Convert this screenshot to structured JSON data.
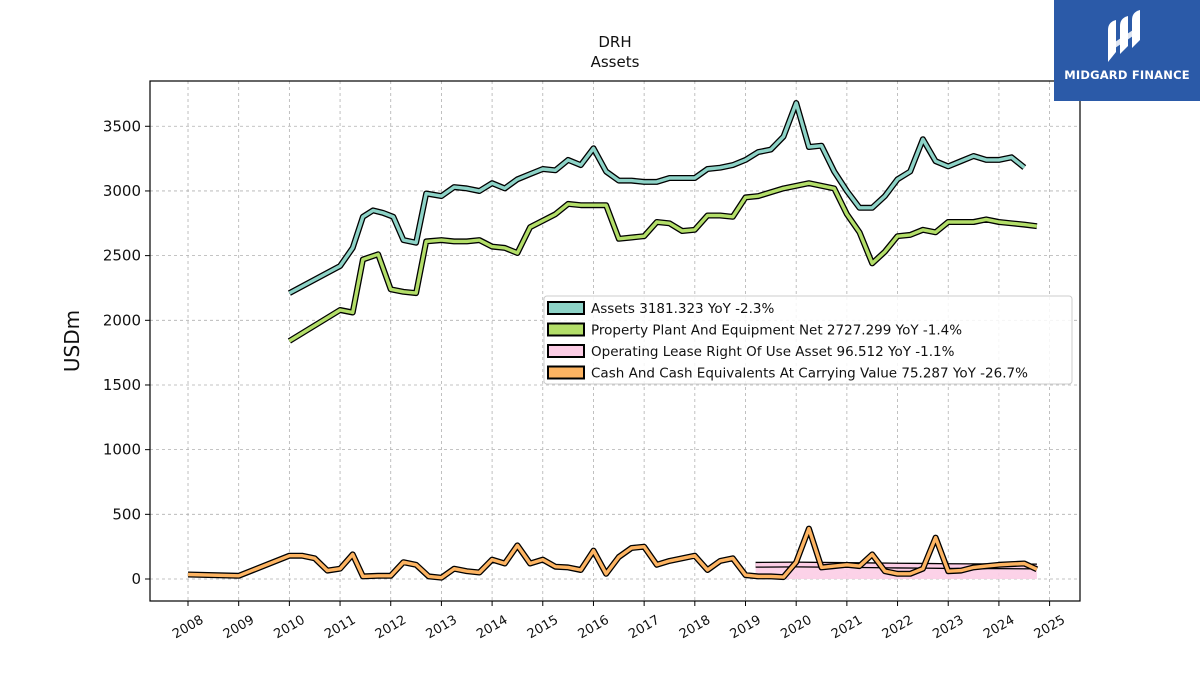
{
  "brand": {
    "name": "MIDGARD FINANCE",
    "icon": "midgard-logo-icon",
    "bg_color": "#2b5aa8"
  },
  "chart_data": {
    "type": "line",
    "title": "DRH",
    "subtitle": "Assets",
    "xlabel": "",
    "ylabel": "USDm",
    "xlim": [
      2007.25,
      2025.6
    ],
    "ylim": [
      -170,
      3850
    ],
    "x_ticks": [
      "2008",
      "2009",
      "2010",
      "2011",
      "2012",
      "2013",
      "2014",
      "2015",
      "2016",
      "2017",
      "2018",
      "2019",
      "2020",
      "2021",
      "2022",
      "2023",
      "2024",
      "2025"
    ],
    "y_ticks": [
      0,
      500,
      1000,
      1500,
      2000,
      2500,
      3000,
      3500
    ],
    "grid": true,
    "legend_position": "center-right",
    "series": [
      {
        "name": "Assets",
        "legend": "Assets  3181.323 YoY -2.3%",
        "color": "#8dd3c7",
        "points": [
          [
            2010.0,
            2210
          ],
          [
            2011.0,
            2420
          ],
          [
            2011.25,
            2560
          ],
          [
            2011.45,
            2800
          ],
          [
            2011.65,
            2850
          ],
          [
            2011.85,
            2830
          ],
          [
            2012.05,
            2800
          ],
          [
            2012.25,
            2620
          ],
          [
            2012.5,
            2600
          ],
          [
            2012.7,
            2980
          ],
          [
            2013.0,
            2960
          ],
          [
            2013.25,
            3030
          ],
          [
            2013.5,
            3020
          ],
          [
            2013.75,
            3000
          ],
          [
            2014.0,
            3060
          ],
          [
            2014.25,
            3020
          ],
          [
            2014.5,
            3090
          ],
          [
            2014.75,
            3130
          ],
          [
            2015.0,
            3170
          ],
          [
            2015.25,
            3160
          ],
          [
            2015.5,
            3240
          ],
          [
            2015.75,
            3200
          ],
          [
            2016.0,
            3330
          ],
          [
            2016.25,
            3150
          ],
          [
            2016.5,
            3080
          ],
          [
            2016.75,
            3080
          ],
          [
            2017.0,
            3070
          ],
          [
            2017.25,
            3070
          ],
          [
            2017.5,
            3100
          ],
          [
            2017.75,
            3100
          ],
          [
            2018.0,
            3100
          ],
          [
            2018.25,
            3170
          ],
          [
            2018.5,
            3180
          ],
          [
            2018.75,
            3200
          ],
          [
            2019.0,
            3240
          ],
          [
            2019.25,
            3300
          ],
          [
            2019.5,
            3320
          ],
          [
            2019.75,
            3420
          ],
          [
            2020.0,
            3680
          ],
          [
            2020.25,
            3340
          ],
          [
            2020.5,
            3350
          ],
          [
            2020.75,
            3150
          ],
          [
            2021.0,
            3000
          ],
          [
            2021.25,
            2870
          ],
          [
            2021.5,
            2870
          ],
          [
            2021.75,
            2960
          ],
          [
            2022.0,
            3090
          ],
          [
            2022.25,
            3150
          ],
          [
            2022.5,
            3400
          ],
          [
            2022.75,
            3230
          ],
          [
            2023.0,
            3190
          ],
          [
            2023.25,
            3230
          ],
          [
            2023.5,
            3270
          ],
          [
            2023.75,
            3240
          ],
          [
            2024.0,
            3240
          ],
          [
            2024.25,
            3260
          ],
          [
            2024.5,
            3181.323
          ]
        ]
      },
      {
        "name": "Property Plant And Equipment Net",
        "legend": "Property Plant And Equipment Net  2727.299 YoY -1.4%",
        "color": "#b3de69",
        "points": [
          [
            2010.0,
            1840
          ],
          [
            2011.0,
            2080
          ],
          [
            2011.25,
            2060
          ],
          [
            2011.45,
            2470
          ],
          [
            2011.75,
            2510
          ],
          [
            2012.0,
            2240
          ],
          [
            2012.25,
            2220
          ],
          [
            2012.5,
            2210
          ],
          [
            2012.7,
            2610
          ],
          [
            2013.0,
            2620
          ],
          [
            2013.25,
            2610
          ],
          [
            2013.5,
            2610
          ],
          [
            2013.75,
            2620
          ],
          [
            2014.0,
            2570
          ],
          [
            2014.25,
            2560
          ],
          [
            2014.5,
            2520
          ],
          [
            2014.75,
            2720
          ],
          [
            2015.0,
            2770
          ],
          [
            2015.25,
            2820
          ],
          [
            2015.5,
            2900
          ],
          [
            2015.75,
            2890
          ],
          [
            2016.0,
            2890
          ],
          [
            2016.25,
            2890
          ],
          [
            2016.5,
            2630
          ],
          [
            2016.75,
            2640
          ],
          [
            2017.0,
            2650
          ],
          [
            2017.25,
            2760
          ],
          [
            2017.5,
            2750
          ],
          [
            2017.75,
            2690
          ],
          [
            2018.0,
            2700
          ],
          [
            2018.25,
            2810
          ],
          [
            2018.5,
            2810
          ],
          [
            2018.75,
            2800
          ],
          [
            2019.0,
            2950
          ],
          [
            2019.25,
            2960
          ],
          [
            2019.5,
            2990
          ],
          [
            2019.75,
            3020
          ],
          [
            2020.0,
            3040
          ],
          [
            2020.25,
            3060
          ],
          [
            2020.5,
            3040
          ],
          [
            2020.75,
            3020
          ],
          [
            2021.0,
            2820
          ],
          [
            2021.25,
            2680
          ],
          [
            2021.5,
            2440
          ],
          [
            2021.75,
            2530
          ],
          [
            2022.0,
            2650
          ],
          [
            2022.25,
            2660
          ],
          [
            2022.5,
            2700
          ],
          [
            2022.75,
            2680
          ],
          [
            2023.0,
            2760
          ],
          [
            2023.25,
            2760
          ],
          [
            2023.5,
            2760
          ],
          [
            2023.75,
            2780
          ],
          [
            2024.0,
            2760
          ],
          [
            2024.25,
            2750
          ],
          [
            2024.5,
            2740
          ],
          [
            2024.75,
            2727.299
          ]
        ]
      },
      {
        "name": "Operating Lease Right Of Use Asset",
        "legend": "Operating Lease Right Of Use Asset  96.512 YoY -1.1%",
        "color": "#fccde5",
        "points": [
          [
            2019.2,
            110
          ],
          [
            2020.0,
            112
          ],
          [
            2020.5,
            110
          ],
          [
            2021.0,
            108
          ],
          [
            2021.5,
            106
          ],
          [
            2022.0,
            104
          ],
          [
            2022.5,
            102
          ],
          [
            2023.0,
            100
          ],
          [
            2023.5,
            99
          ],
          [
            2024.0,
            98
          ],
          [
            2024.75,
            96.512
          ]
        ]
      },
      {
        "name": "Cash And Cash Equivalents At Carrying Value",
        "legend": "Cash And Cash Equivalents At Carrying Value  75.287 YoY -26.7%",
        "color": "#fdb462",
        "points": [
          [
            2008.0,
            35
          ],
          [
            2009.0,
            25
          ],
          [
            2010.0,
            180
          ],
          [
            2010.25,
            180
          ],
          [
            2010.5,
            160
          ],
          [
            2010.75,
            65
          ],
          [
            2011.0,
            80
          ],
          [
            2011.25,
            190
          ],
          [
            2011.45,
            20
          ],
          [
            2011.75,
            25
          ],
          [
            2012.0,
            25
          ],
          [
            2012.25,
            130
          ],
          [
            2012.5,
            110
          ],
          [
            2012.75,
            20
          ],
          [
            2013.0,
            10
          ],
          [
            2013.25,
            80
          ],
          [
            2013.5,
            60
          ],
          [
            2013.75,
            50
          ],
          [
            2014.0,
            150
          ],
          [
            2014.25,
            120
          ],
          [
            2014.5,
            260
          ],
          [
            2014.75,
            120
          ],
          [
            2015.0,
            150
          ],
          [
            2015.25,
            95
          ],
          [
            2015.5,
            90
          ],
          [
            2015.75,
            70
          ],
          [
            2016.0,
            220
          ],
          [
            2016.25,
            40
          ],
          [
            2016.5,
            170
          ],
          [
            2016.75,
            240
          ],
          [
            2017.0,
            250
          ],
          [
            2017.25,
            110
          ],
          [
            2017.5,
            140
          ],
          [
            2017.75,
            160
          ],
          [
            2018.0,
            180
          ],
          [
            2018.25,
            70
          ],
          [
            2018.5,
            140
          ],
          [
            2018.75,
            160
          ],
          [
            2019.0,
            30
          ],
          [
            2019.25,
            20
          ],
          [
            2019.5,
            20
          ],
          [
            2019.75,
            15
          ],
          [
            2020.0,
            130
          ],
          [
            2020.25,
            390
          ],
          [
            2020.5,
            90
          ],
          [
            2020.75,
            100
          ],
          [
            2021.0,
            110
          ],
          [
            2021.25,
            100
          ],
          [
            2021.5,
            190
          ],
          [
            2021.75,
            60
          ],
          [
            2022.0,
            40
          ],
          [
            2022.25,
            40
          ],
          [
            2022.5,
            80
          ],
          [
            2022.75,
            320
          ],
          [
            2023.0,
            60
          ],
          [
            2023.25,
            65
          ],
          [
            2023.5,
            90
          ],
          [
            2023.75,
            100
          ],
          [
            2024.0,
            110
          ],
          [
            2024.25,
            115
          ],
          [
            2024.5,
            120
          ],
          [
            2024.75,
            75.287
          ]
        ]
      }
    ]
  }
}
